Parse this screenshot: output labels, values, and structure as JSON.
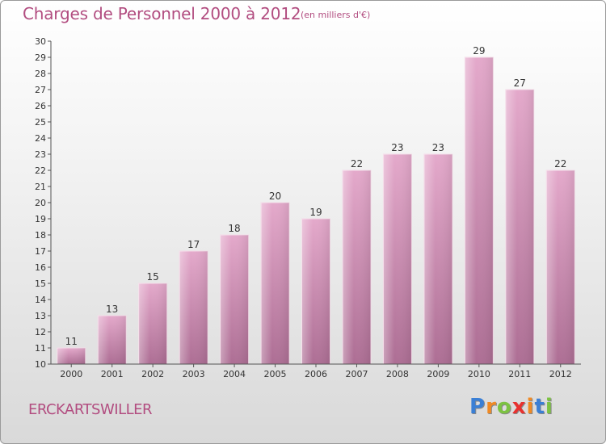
{
  "chart_data": {
    "type": "bar",
    "title": "Charges de Personnel 2000 à 2012",
    "subtitle": "(en milliers d'€)",
    "categories": [
      "2000",
      "2001",
      "2002",
      "2003",
      "2004",
      "2005",
      "2006",
      "2007",
      "2008",
      "2009",
      "2010",
      "2011",
      "2012"
    ],
    "values": [
      11,
      13,
      15,
      17,
      18,
      20,
      19,
      22,
      23,
      23,
      29,
      27,
      22
    ],
    "ylim": [
      10,
      30
    ],
    "yticks": [
      10,
      11,
      12,
      13,
      14,
      15,
      16,
      17,
      18,
      19,
      20,
      21,
      22,
      23,
      24,
      25,
      26,
      27,
      28,
      29,
      30
    ],
    "grid": false,
    "bar_color": "#c0739e"
  },
  "commune": "ERCKARTSWILLER",
  "logo": {
    "letters": [
      "P",
      "r",
      "o",
      "x",
      "i",
      "t",
      "i"
    ],
    "colors": [
      "#3a7fd5",
      "#f08a24",
      "#7cc242",
      "#e8312f",
      "#f08a24",
      "#3a7fd5",
      "#7cc242"
    ]
  }
}
